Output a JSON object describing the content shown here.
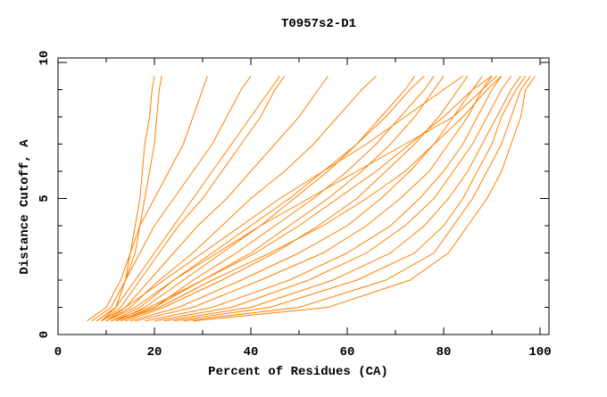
{
  "chart_data": {
    "type": "line",
    "title": "T0957s2-D1",
    "xlabel": "Percent of Residues (CA)",
    "ylabel": "Distance Cutoff, A",
    "xlim": [
      0,
      102
    ],
    "ylim": [
      0,
      10
    ],
    "xticks": [
      "0",
      "20",
      "40",
      "60",
      "80",
      "100"
    ],
    "yticks": [
      "0",
      "5",
      "10"
    ],
    "grid": false,
    "line_color": "#ff8000",
    "y": [
      0.5,
      1,
      2,
      3,
      4,
      5,
      6,
      7,
      8,
      9,
      9.5
    ],
    "series": [
      {
        "x": [
          8,
          12,
          14,
          15,
          16,
          17,
          17.5,
          18,
          19,
          19.5,
          20
        ]
      },
      {
        "x": [
          9,
          12,
          14,
          16,
          17,
          18,
          19,
          20,
          20.5,
          21,
          21.5
        ]
      },
      {
        "x": [
          6,
          10,
          13,
          15,
          17,
          20,
          23,
          26,
          28,
          30,
          31
        ]
      },
      {
        "x": [
          7,
          11,
          14,
          17,
          20,
          24,
          28,
          32,
          35,
          38,
          40
        ]
      },
      {
        "x": [
          9,
          13,
          17,
          21,
          25,
          30,
          34,
          38,
          42,
          45,
          47
        ]
      },
      {
        "x": [
          10,
          14,
          19,
          24,
          29,
          35,
          40,
          45,
          50,
          54,
          56
        ]
      },
      {
        "x": [
          10,
          15,
          21,
          28,
          34,
          40,
          47,
          53,
          58,
          63,
          66
        ]
      },
      {
        "x": [
          12,
          18,
          26,
          34,
          42,
          49,
          56,
          62,
          67,
          72,
          74
        ]
      },
      {
        "x": [
          13,
          20,
          30,
          40,
          48,
          56,
          63,
          69,
          74,
          78,
          80
        ]
      },
      {
        "x": [
          14,
          22,
          34,
          45,
          54,
          62,
          68,
          74,
          79,
          83,
          85
        ]
      },
      {
        "x": [
          15,
          25,
          38,
          50,
          60,
          67,
          73,
          78,
          82,
          86,
          88
        ]
      },
      {
        "x": [
          16,
          28,
          42,
          55,
          64,
          71,
          77,
          81,
          85,
          88,
          90
        ]
      },
      {
        "x": [
          18,
          32,
          48,
          60,
          69,
          75,
          80,
          84,
          87,
          90,
          92
        ]
      },
      {
        "x": [
          20,
          36,
          52,
          64,
          72,
          78,
          82,
          86,
          89,
          92,
          94
        ]
      },
      {
        "x": [
          22,
          40,
          57,
          69,
          76,
          81,
          85,
          88,
          91,
          94,
          96
        ]
      },
      {
        "x": [
          24,
          44,
          62,
          74,
          80,
          84,
          87,
          90,
          92,
          95,
          97
        ]
      },
      {
        "x": [
          26,
          50,
          68,
          78,
          82,
          86,
          89,
          92,
          94,
          96,
          98
        ]
      },
      {
        "x": [
          28,
          56,
          73,
          81,
          85,
          89,
          92,
          94,
          96,
          97,
          99
        ]
      },
      {
        "x": [
          11,
          17,
          24,
          32,
          40,
          48,
          55,
          62,
          68,
          73,
          76
        ]
      },
      {
        "x": [
          12,
          20,
          28,
          37,
          45,
          53,
          60,
          66,
          71,
          76,
          78
        ]
      },
      {
        "x": [
          9,
          14,
          22,
          30,
          38,
          46,
          55,
          64,
          72,
          80,
          84
        ]
      },
      {
        "x": [
          11,
          19,
          30,
          41,
          50,
          58,
          66,
          73,
          80,
          86,
          90
        ]
      },
      {
        "x": [
          13,
          21,
          32,
          44,
          55,
          64,
          72,
          78,
          84,
          89,
          92
        ]
      },
      {
        "x": [
          8,
          12,
          16,
          20,
          24,
          28,
          32,
          36,
          40,
          44,
          46
        ]
      },
      {
        "x": [
          10,
          16,
          24,
          33,
          42,
          52,
          62,
          72,
          82,
          88,
          91
        ]
      }
    ]
  }
}
